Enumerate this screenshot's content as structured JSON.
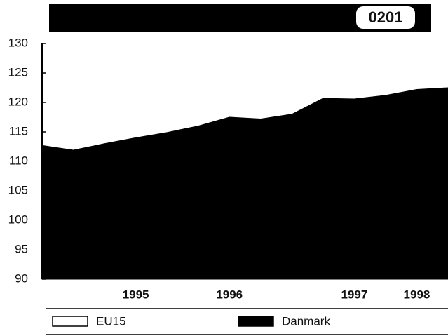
{
  "chart_data": {
    "type": "area",
    "title": "0201",
    "categories": [
      null,
      null,
      null,
      "1995",
      null,
      null,
      "1996",
      null,
      null,
      null,
      "1997",
      null,
      "1998",
      null
    ],
    "series": [
      {
        "name": "EU15",
        "color": "#ffffff",
        "values": [
          null,
          null,
          null,
          null,
          null,
          null,
          null,
          null,
          null,
          null,
          null,
          null,
          null,
          null
        ]
      },
      {
        "name": "Danmark",
        "color": "#000000",
        "values": [
          112.7,
          111.9,
          113.0,
          114.0,
          114.9,
          116.0,
          117.5,
          117.2,
          118.0,
          120.7,
          120.6,
          121.2,
          122.2,
          122.5
        ]
      }
    ],
    "ylim": [
      90,
      130
    ],
    "yticks": [
      90,
      95,
      100,
      105,
      110,
      115,
      120,
      125,
      130
    ]
  }
}
